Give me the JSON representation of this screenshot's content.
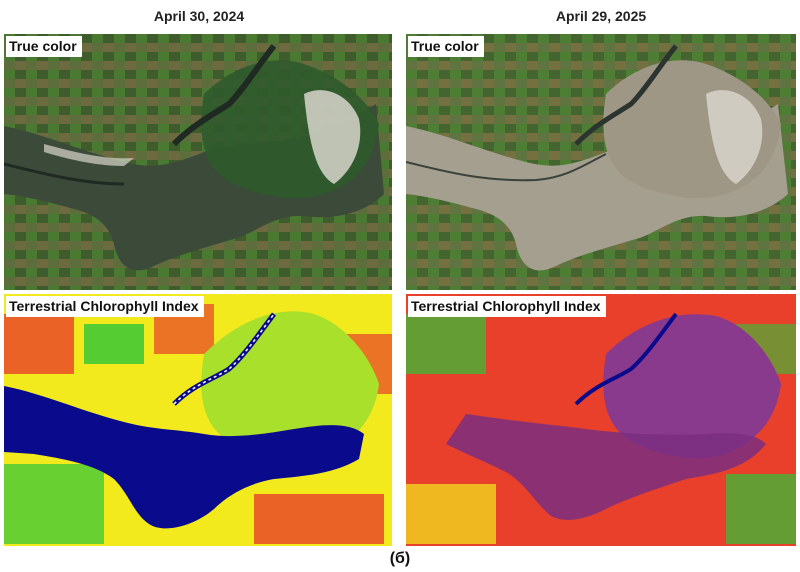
{
  "columns": [
    {
      "date": "April 30, 2024"
    },
    {
      "date": "April 29, 2025"
    }
  ],
  "panels": {
    "top_label": "True color",
    "bottom_label": "Terrestrial Chlorophyll Index"
  },
  "caption": "(б)",
  "colors": {
    "water_2024": "#3c4a3a",
    "field_green": "#4f7a3a",
    "dry_bed_2025": "#a59f90",
    "tci_water": "#0a0a8c",
    "tci_high": "#2ec43a",
    "tci_mid": "#f2ea1c",
    "tci_low": "#e8402a",
    "tci_purple": "#8a3a8c"
  }
}
